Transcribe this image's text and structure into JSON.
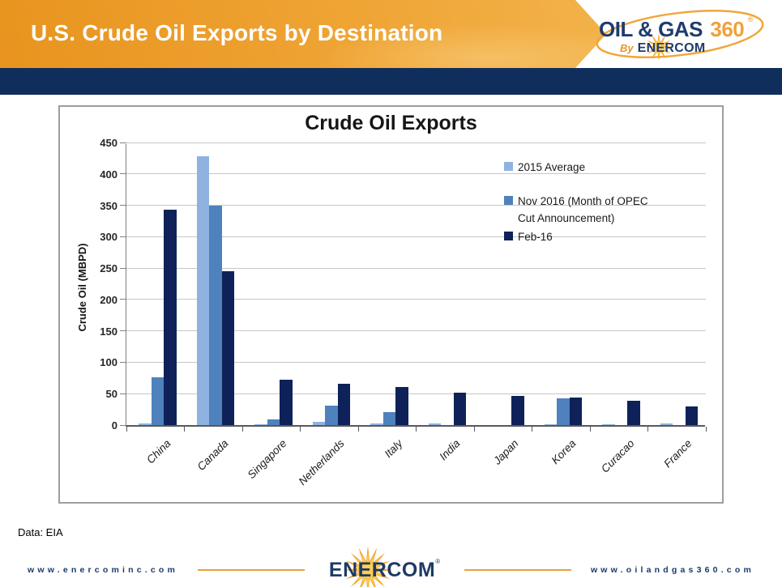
{
  "header": {
    "title": "U.S. Crude Oil Exports by Destination",
    "logo": {
      "name1": "OIL & GAS",
      "name2": "360",
      "registered": "®",
      "by": "By",
      "brand": "ENERCOM"
    }
  },
  "chart_data": {
    "type": "bar",
    "title": "Crude Oil Exports",
    "xlabel": "",
    "ylabel": "Crude Oil (MBPD)",
    "ylim": [
      0,
      450
    ],
    "ytick_step": 50,
    "grid": true,
    "legend_position": "upper right",
    "categories": [
      "China",
      "Canada",
      "Singapore",
      "Netherlands",
      "Italy",
      "India",
      "Japan",
      "Korea",
      "Curacao",
      "France"
    ],
    "series": [
      {
        "name": "2015 Average",
        "color": "#8fb3e0",
        "legend_lines": [
          "2015 Average"
        ],
        "values": [
          2,
          428,
          1,
          5,
          3,
          2,
          0,
          1,
          1,
          2
        ]
      },
      {
        "name": "Nov 2016 (Month of OPEC Cut Announcement)",
        "color": "#4f81bd",
        "legend_lines": [
          "Nov 2016 (Month of OPEC",
          "Cut Announcement)"
        ],
        "values": [
          76,
          350,
          9,
          31,
          21,
          0,
          0,
          42,
          0,
          0
        ]
      },
      {
        "name": "Feb-16",
        "color": "#0e2259",
        "legend_lines": [
          "Feb-16"
        ],
        "values": [
          343,
          245,
          72,
          66,
          60,
          51,
          46,
          44,
          39,
          30
        ]
      }
    ]
  },
  "footer": {
    "source": "Data: EIA",
    "left_url": "www.enercominc.com",
    "right_url": "www.oilandgas360.com",
    "brand": "ENERCOM",
    "brand_mark": "®"
  },
  "colors": {
    "header_orange": "#efa434",
    "navy_band": "#102e5c",
    "brand_navy": "#1e3c6e",
    "gold_line": "#e7a33c",
    "series_light": "#8fb3e0",
    "series_medium": "#4f81bd",
    "series_dark": "#0e2259"
  }
}
